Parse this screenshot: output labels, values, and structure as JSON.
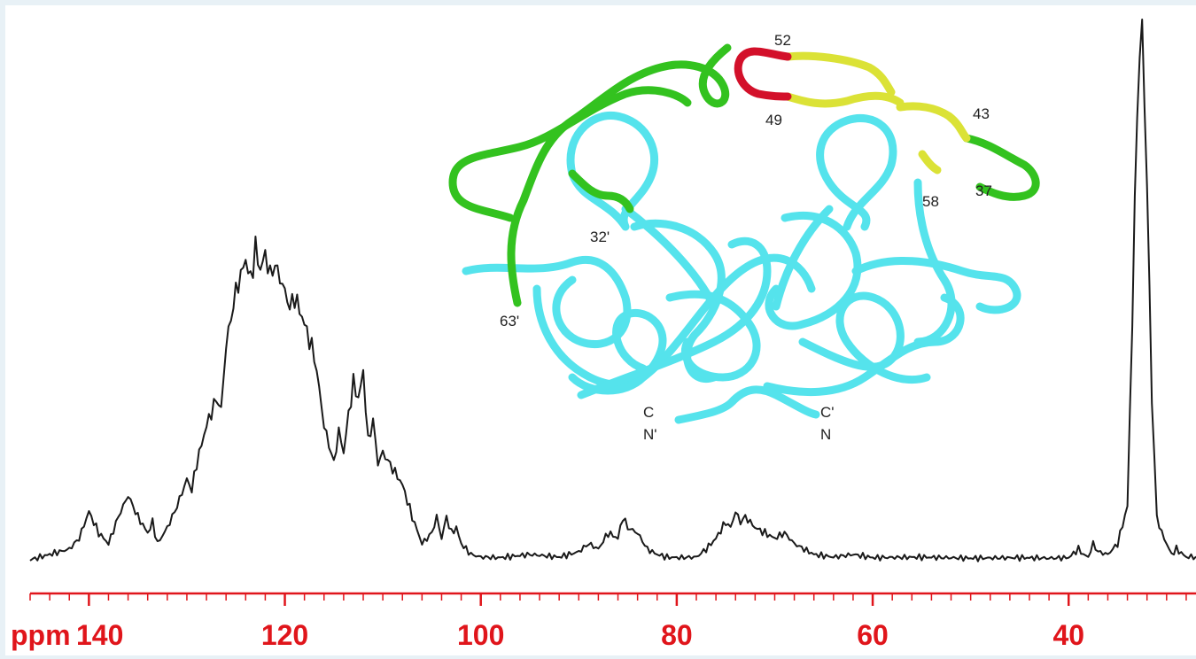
{
  "colors": {
    "spectrum": "#1a1a1a",
    "axis": "#e0151b",
    "helix_core": "#55e3ec",
    "flap_green": "#33c21f",
    "flap_yellow": "#dbe236",
    "flap_red": "#d3102a"
  },
  "chart_data": {
    "type": "line",
    "title": "",
    "xlabel": "ppm",
    "ylabel": "",
    "xlim": [
      146,
      27
    ],
    "x_reversed": true,
    "grid": false,
    "x_ticks": [
      140,
      120,
      100,
      80,
      60,
      40
    ],
    "x_tick_labels": [
      "140",
      "120",
      "100",
      "80",
      "60",
      "40"
    ],
    "series": [
      {
        "x": [
          146,
          144,
          142,
          141,
          140,
          139,
          138,
          137,
          136,
          135.5,
          135,
          134,
          133.5,
          133,
          132,
          131,
          130,
          129.5,
          129,
          128,
          127,
          126.5,
          126,
          125,
          124,
          123.5,
          123,
          122.5,
          122,
          121.5,
          121,
          120,
          119.5,
          119,
          118,
          117,
          116.5,
          116,
          115,
          114.5,
          114,
          113.5,
          113,
          112.5,
          112,
          111.5,
          111,
          110.5,
          110,
          109,
          108,
          107,
          106,
          105,
          104.5,
          104,
          103.5,
          103,
          102.5,
          102,
          101,
          100,
          98,
          95,
          92,
          90,
          89,
          88,
          87,
          86,
          85.5,
          85,
          84,
          83,
          82,
          81,
          80,
          78,
          77,
          76,
          75,
          74.5,
          74,
          73.5,
          73,
          72,
          71,
          70,
          69,
          68,
          67,
          66,
          64,
          62,
          60,
          55,
          50,
          45,
          42,
          40,
          39,
          38.5,
          38,
          37.5,
          37,
          36,
          35,
          34,
          33.5,
          33,
          32.5,
          32,
          31.5,
          31,
          30.5,
          30,
          29.5,
          29,
          28,
          27
        ],
        "y": [
          0.0,
          0.01,
          0.02,
          0.04,
          0.09,
          0.05,
          0.03,
          0.08,
          0.12,
          0.1,
          0.08,
          0.05,
          0.07,
          0.03,
          0.06,
          0.1,
          0.15,
          0.13,
          0.18,
          0.25,
          0.3,
          0.28,
          0.4,
          0.5,
          0.56,
          0.52,
          0.58,
          0.54,
          0.57,
          0.53,
          0.55,
          0.5,
          0.47,
          0.49,
          0.44,
          0.38,
          0.32,
          0.25,
          0.18,
          0.24,
          0.2,
          0.27,
          0.33,
          0.3,
          0.35,
          0.22,
          0.26,
          0.18,
          0.2,
          0.17,
          0.14,
          0.08,
          0.03,
          0.05,
          0.08,
          0.04,
          0.08,
          0.05,
          0.06,
          0.03,
          0.01,
          0.005,
          0.004,
          0.01,
          0.005,
          0.015,
          0.03,
          0.02,
          0.05,
          0.04,
          0.08,
          0.06,
          0.05,
          0.02,
          0.01,
          0.005,
          0.004,
          0.005,
          0.02,
          0.04,
          0.07,
          0.06,
          0.09,
          0.07,
          0.08,
          0.06,
          0.05,
          0.04,
          0.05,
          0.03,
          0.02,
          0.01,
          0.005,
          0.01,
          0.004,
          0.005,
          0.003,
          0.004,
          0.003,
          0.004,
          0.02,
          0.01,
          0.005,
          0.03,
          0.015,
          0.01,
          0.03,
          0.1,
          0.45,
          0.85,
          1.0,
          0.7,
          0.3,
          0.08,
          0.05,
          0.03,
          0.01,
          0.02,
          0.005,
          0.006
        ]
      }
    ]
  },
  "inset": {
    "residue_labels": [
      "52",
      "49",
      "43",
      "37",
      "58",
      "32'",
      "63'",
      "C",
      "N'",
      "C'",
      "N"
    ]
  }
}
